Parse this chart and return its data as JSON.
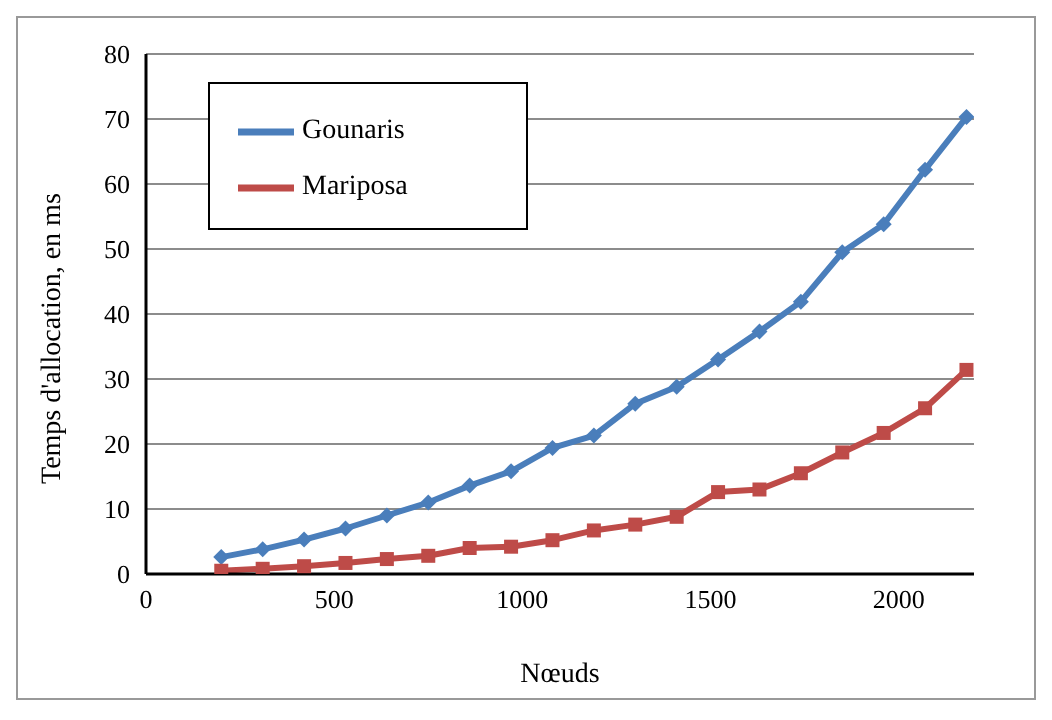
{
  "chart_data": {
    "type": "line",
    "xlabel": "Nœuds",
    "ylabel": "Temps d'allocation, en ms",
    "x": [
      200,
      310,
      420,
      530,
      640,
      750,
      860,
      970,
      1080,
      1190,
      1300,
      1410,
      1520,
      1630,
      1740,
      1850,
      1960,
      2070,
      2180
    ],
    "series": [
      {
        "name": "Gounaris",
        "color": "#4a7ebb",
        "marker": "diamond",
        "values": [
          2.6,
          3.8,
          5.3,
          7.0,
          9.0,
          11.0,
          13.6,
          15.8,
          19.4,
          21.3,
          26.2,
          28.8,
          33.0,
          37.3,
          41.9,
          49.5,
          53.8,
          62.2,
          70.3
        ]
      },
      {
        "name": "Mariposa",
        "color": "#be4b48",
        "marker": "square",
        "values": [
          0.5,
          0.8,
          1.2,
          1.7,
          2.3,
          2.8,
          4.0,
          4.2,
          5.2,
          6.7,
          7.6,
          8.8,
          12.6,
          13.0,
          15.5,
          18.7,
          21.7,
          25.5,
          31.4
        ]
      }
    ],
    "xlim": [
      0,
      2200
    ],
    "xticks": [
      0,
      500,
      1000,
      1500,
      2000
    ],
    "ylim": [
      0,
      80
    ],
    "yticks": [
      0,
      10,
      20,
      30,
      40,
      50,
      60,
      70,
      80
    ],
    "grid": "y",
    "legend": "top left"
  }
}
